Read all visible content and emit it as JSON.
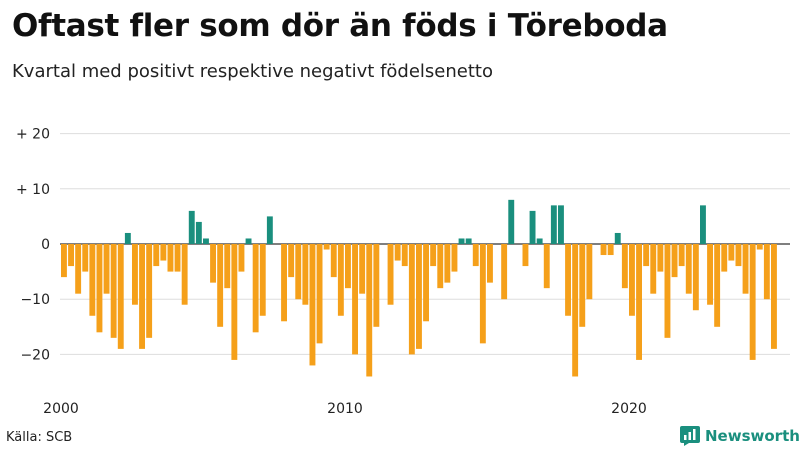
{
  "header": {
    "title": "Oftast fler som dör än föds i Töreboda",
    "subtitle": "Kvartal med positivt respektive negativt födelsenetto"
  },
  "footer": {
    "source": "Källa: SCB",
    "brand": "Newsworthy"
  },
  "colors": {
    "positive": "#1a8f7e",
    "negative": "#f5a01a",
    "grid": "#dddddd",
    "baseline": "#333333",
    "brand": "#1a8f7e"
  },
  "chart_data": {
    "type": "bar",
    "title": "Oftast fler som dör än föds i Töreboda",
    "subtitle": "Kvartal med positivt respektive negativt födelsenetto",
    "xlabel": "",
    "ylabel": "",
    "ylim": [
      -25,
      20
    ],
    "grid": true,
    "yticks": [
      {
        "value": 20,
        "label": "+ 20"
      },
      {
        "value": 10,
        "label": "+ 10"
      },
      {
        "value": 0,
        "label": "0"
      },
      {
        "value": -10,
        "label": "−10"
      },
      {
        "value": -20,
        "label": "−20"
      }
    ],
    "xticks": [
      {
        "year": 2000,
        "label": "2000"
      },
      {
        "year": 2010,
        "label": "2010"
      },
      {
        "year": 2020,
        "label": "2020"
      }
    ],
    "start_year": 2000,
    "start_quarter": 1,
    "values": [
      -6,
      -4,
      -9,
      -5,
      -13,
      -16,
      -9,
      -17,
      -19,
      2,
      -11,
      -19,
      -17,
      -4,
      -3,
      -5,
      -5,
      -11,
      6,
      4,
      1,
      -7,
      -15,
      -8,
      -21,
      -5,
      1,
      -16,
      -13,
      5,
      0,
      -14,
      -6,
      -10,
      -11,
      -22,
      -18,
      -1,
      -6,
      -13,
      -8,
      -20,
      -9,
      -24,
      -15,
      0,
      -11,
      -3,
      -4,
      -20,
      -19,
      -14,
      -4,
      -8,
      -7,
      -5,
      1,
      1,
      -4,
      -18,
      -7,
      0,
      -10,
      8,
      0,
      -4,
      6,
      1,
      -8,
      7,
      7,
      -13,
      -24,
      -15,
      -10,
      0,
      -2,
      -2,
      2,
      -8,
      -13,
      -21,
      -4,
      -9,
      -5,
      -17,
      -6,
      -4,
      -9,
      -12,
      7,
      -11,
      -15,
      -5,
      -3,
      -4,
      -9,
      -21,
      -1,
      -10,
      -19
    ]
  }
}
